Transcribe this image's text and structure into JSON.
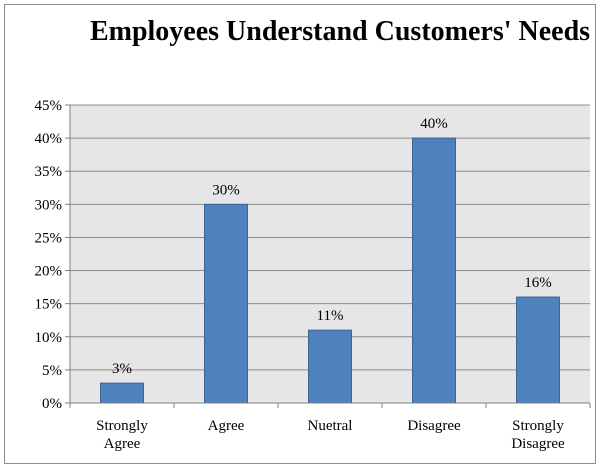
{
  "chart_data": {
    "type": "bar",
    "title": "Employees Understand Customers' Needs",
    "categories": [
      "Strongly Agree",
      "Agree",
      "Nuetral",
      "Disagree",
      "Strongly Disagree"
    ],
    "category_lines": [
      [
        "Strongly",
        "Agree"
      ],
      [
        "Agree"
      ],
      [
        "Nuetral"
      ],
      [
        "Disagree"
      ],
      [
        "Strongly",
        "Disagree"
      ]
    ],
    "values": [
      3,
      30,
      11,
      40,
      16
    ],
    "value_labels": [
      "3%",
      "30%",
      "11%",
      "40%",
      "16%"
    ],
    "y_ticks": [
      "0%",
      "5%",
      "10%",
      "15%",
      "20%",
      "25%",
      "30%",
      "35%",
      "40%",
      "45%"
    ],
    "ylim": [
      0,
      45
    ],
    "y_unit": "percent",
    "grid": true,
    "legend": "none",
    "colors": {
      "bar": "#4f81bd",
      "bar_edge": "#3a6596",
      "plot_background": "#e6e6e6",
      "gridline": "#8c8c8c"
    }
  }
}
